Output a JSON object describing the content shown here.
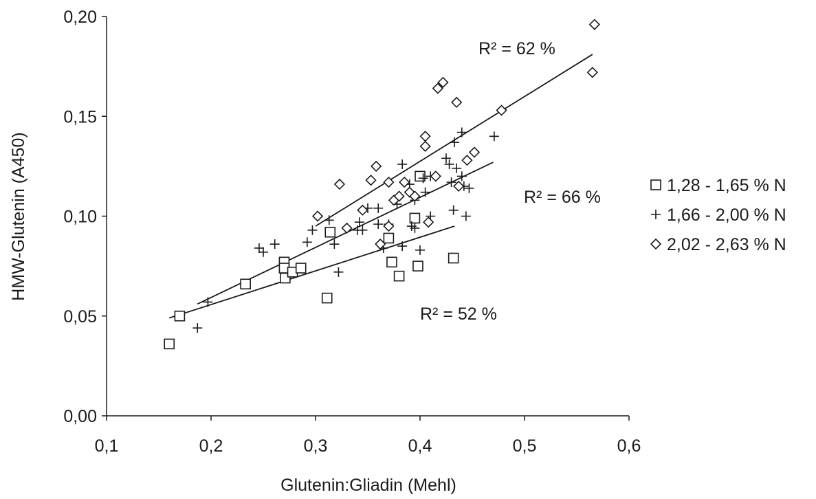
{
  "chart_data": {
    "type": "scatter",
    "title": "",
    "xlabel": "Glutenin:Gliadin (Mehl)",
    "ylabel": "HMW-Glutenin (A450)",
    "xlim": [
      0.1,
      0.6
    ],
    "ylim": [
      0.0,
      0.2
    ],
    "x_ticks": [
      {
        "value": 0.1,
        "label": "0,1"
      },
      {
        "value": 0.2,
        "label": "0,2"
      },
      {
        "value": 0.3,
        "label": "0,3"
      },
      {
        "value": 0.4,
        "label": "0,4"
      },
      {
        "value": 0.5,
        "label": "0,5"
      },
      {
        "value": 0.6,
        "label": "0,6"
      }
    ],
    "y_ticks": [
      {
        "value": 0.0,
        "label": "0,00"
      },
      {
        "value": 0.05,
        "label": "0,05"
      },
      {
        "value": 0.1,
        "label": "0,10"
      },
      {
        "value": 0.15,
        "label": "0,15"
      },
      {
        "value": 0.2,
        "label": "0,20"
      }
    ],
    "grid": false,
    "legend_position": "right",
    "series": [
      {
        "name": "1,28 - 1,65 % N",
        "marker": "square",
        "points": [
          [
            0.16,
            0.036
          ],
          [
            0.17,
            0.05
          ],
          [
            0.233,
            0.066
          ],
          [
            0.27,
            0.077
          ],
          [
            0.27,
            0.074
          ],
          [
            0.271,
            0.069
          ],
          [
            0.278,
            0.072
          ],
          [
            0.286,
            0.074
          ],
          [
            0.311,
            0.059
          ],
          [
            0.314,
            0.092
          ],
          [
            0.37,
            0.089
          ],
          [
            0.373,
            0.077
          ],
          [
            0.38,
            0.07
          ],
          [
            0.395,
            0.099
          ],
          [
            0.398,
            0.075
          ],
          [
            0.4,
            0.12
          ],
          [
            0.432,
            0.079
          ]
        ],
        "trend": {
          "x": [
            0.16,
            0.433
          ],
          "y": [
            0.049,
            0.095
          ],
          "label": "R² = 52 %"
        }
      },
      {
        "name": "1,66 - 2,00 % N",
        "marker": "plus",
        "points": [
          [
            0.187,
            0.044
          ],
          [
            0.197,
            0.057
          ],
          [
            0.246,
            0.084
          ],
          [
            0.25,
            0.082
          ],
          [
            0.261,
            0.086
          ],
          [
            0.292,
            0.087
          ],
          [
            0.297,
            0.093
          ],
          [
            0.313,
            0.098
          ],
          [
            0.318,
            0.086
          ],
          [
            0.322,
            0.072
          ],
          [
            0.34,
            0.093
          ],
          [
            0.342,
            0.097
          ],
          [
            0.345,
            0.093
          ],
          [
            0.35,
            0.104
          ],
          [
            0.36,
            0.104
          ],
          [
            0.36,
            0.096
          ],
          [
            0.365,
            0.084
          ],
          [
            0.37,
            0.096
          ],
          [
            0.378,
            0.106
          ],
          [
            0.383,
            0.126
          ],
          [
            0.383,
            0.085
          ],
          [
            0.39,
            0.116
          ],
          [
            0.392,
            0.095
          ],
          [
            0.395,
            0.108
          ],
          [
            0.395,
            0.094
          ],
          [
            0.4,
            0.083
          ],
          [
            0.403,
            0.119
          ],
          [
            0.405,
            0.112
          ],
          [
            0.41,
            0.12
          ],
          [
            0.41,
            0.1
          ],
          [
            0.425,
            0.129
          ],
          [
            0.428,
            0.126
          ],
          [
            0.43,
            0.117
          ],
          [
            0.432,
            0.103
          ],
          [
            0.433,
            0.137
          ],
          [
            0.435,
            0.124
          ],
          [
            0.44,
            0.142
          ],
          [
            0.44,
            0.12
          ],
          [
            0.442,
            0.115
          ],
          [
            0.444,
            0.1
          ],
          [
            0.447,
            0.114
          ],
          [
            0.471,
            0.14
          ]
        ],
        "trend": {
          "x": [
            0.187,
            0.47
          ],
          "y": [
            0.056,
            0.127
          ],
          "label": "R² = 66 %"
        }
      },
      {
        "name": "2,02 - 2,63 % N",
        "marker": "diamond",
        "points": [
          [
            0.302,
            0.1
          ],
          [
            0.323,
            0.116
          ],
          [
            0.33,
            0.094
          ],
          [
            0.345,
            0.103
          ],
          [
            0.353,
            0.118
          ],
          [
            0.358,
            0.125
          ],
          [
            0.362,
            0.086
          ],
          [
            0.37,
            0.095
          ],
          [
            0.37,
            0.117
          ],
          [
            0.375,
            0.108
          ],
          [
            0.38,
            0.11
          ],
          [
            0.385,
            0.117
          ],
          [
            0.39,
            0.112
          ],
          [
            0.395,
            0.11
          ],
          [
            0.405,
            0.135
          ],
          [
            0.405,
            0.14
          ],
          [
            0.408,
            0.097
          ],
          [
            0.415,
            0.12
          ],
          [
            0.417,
            0.164
          ],
          [
            0.422,
            0.167
          ],
          [
            0.435,
            0.157
          ],
          [
            0.437,
            0.115
          ],
          [
            0.445,
            0.128
          ],
          [
            0.452,
            0.132
          ],
          [
            0.478,
            0.153
          ],
          [
            0.565,
            0.172
          ],
          [
            0.567,
            0.196
          ]
        ],
        "trend": {
          "x": [
            0.3,
            0.565
          ],
          "y": [
            0.095,
            0.181
          ],
          "label": "R² = 62 %"
        }
      }
    ]
  }
}
